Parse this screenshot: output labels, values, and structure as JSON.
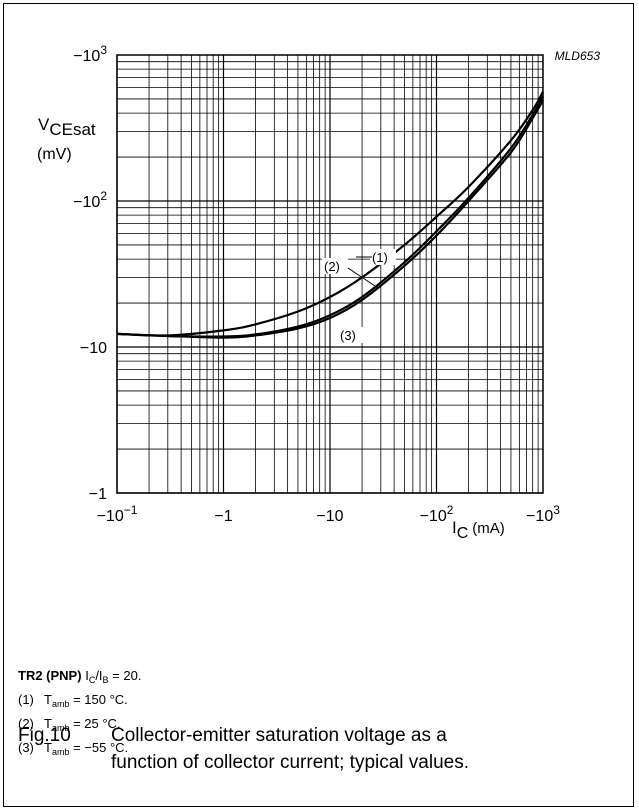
{
  "figure_code": "MLD653",
  "y_axis_label": {
    "main": "V",
    "sub": "CEsat",
    "unit": "(mV)"
  },
  "x_axis_label": {
    "main": "I",
    "sub": "C",
    "unit": "(mA)"
  },
  "conditions": {
    "title_bold": "TR2 (PNP)",
    "title_main": "I",
    "title_sub1": "C",
    "title_mid": "/I",
    "title_sub2": "B",
    "title_end": " = 20.",
    "items": [
      {
        "num": "(1)",
        "t": "T",
        "sub": "amb",
        "rest": " = 150 °C."
      },
      {
        "num": "(2)",
        "t": "T",
        "sub": "amb",
        "rest": " = 25 °C."
      },
      {
        "num": "(3)",
        "t": "T",
        "sub": "amb",
        "rest": " = −55 °C."
      }
    ]
  },
  "caption": {
    "fig": "Fig.10",
    "line1": "Collector-emitter saturation voltage as a",
    "line2": "function of collector current; typical values."
  },
  "chart_data": {
    "type": "line",
    "x_scale": "log",
    "y_scale": "log",
    "xlim": [
      -0.1,
      -1000
    ],
    "ylim": [
      -1,
      -1000
    ],
    "x_ticks": [
      {
        "value": -0.1,
        "label": "−10",
        "exp": "−1"
      },
      {
        "value": -1,
        "label": "−1",
        "exp": ""
      },
      {
        "value": -10,
        "label": "−10",
        "exp": ""
      },
      {
        "value": -100,
        "label": "−10",
        "exp": "2"
      },
      {
        "value": -1000,
        "label": "−10",
        "exp": "3"
      }
    ],
    "y_ticks": [
      {
        "value": -1,
        "label": "−1",
        "exp": ""
      },
      {
        "value": -10,
        "label": "−10",
        "exp": ""
      },
      {
        "value": -100,
        "label": "−10",
        "exp": "2"
      },
      {
        "value": -1000,
        "label": "−10",
        "exp": "3"
      }
    ],
    "grid": true,
    "series": [
      {
        "name": "(1)",
        "x": [
          -0.1,
          -0.3,
          -1,
          -2,
          -5,
          -10,
          -20,
          -50,
          -100,
          -200,
          -500,
          -800,
          -1000
        ],
        "y": [
          -12.3,
          -12.0,
          -13.0,
          -14.3,
          -17.5,
          -22,
          -30,
          -50,
          -78,
          -125,
          -260,
          -420,
          -560
        ]
      },
      {
        "name": "(2)",
        "x": [
          -0.1,
          -0.3,
          -1,
          -2,
          -5,
          -10,
          -20,
          -50,
          -100,
          -200,
          -500,
          -800,
          -1000
        ],
        "y": [
          -12.3,
          -11.9,
          -11.8,
          -12.2,
          -13.8,
          -16.5,
          -22,
          -38,
          -62,
          -105,
          -230,
          -390,
          -520
        ]
      },
      {
        "name": "(3)",
        "x": [
          -0.1,
          -0.3,
          -1,
          -2,
          -5,
          -10,
          -20,
          -50,
          -100,
          -200,
          -500,
          -800,
          -1000
        ],
        "y": [
          -12.3,
          -11.9,
          -11.6,
          -12.0,
          -13.4,
          -15.8,
          -21,
          -36,
          -58,
          -100,
          -215,
          -370,
          -490
        ]
      }
    ]
  }
}
